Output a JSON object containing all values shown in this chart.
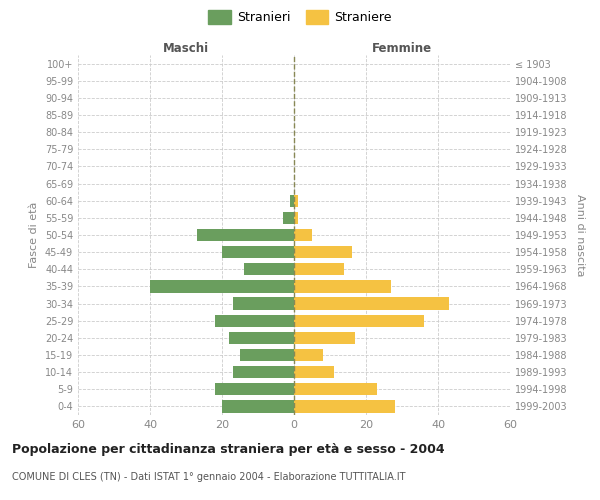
{
  "age_groups": [
    "0-4",
    "5-9",
    "10-14",
    "15-19",
    "20-24",
    "25-29",
    "30-34",
    "35-39",
    "40-44",
    "45-49",
    "50-54",
    "55-59",
    "60-64",
    "65-69",
    "70-74",
    "75-79",
    "80-84",
    "85-89",
    "90-94",
    "95-99",
    "100+"
  ],
  "birth_years": [
    "1999-2003",
    "1994-1998",
    "1989-1993",
    "1984-1988",
    "1979-1983",
    "1974-1978",
    "1969-1973",
    "1964-1968",
    "1959-1963",
    "1954-1958",
    "1949-1953",
    "1944-1948",
    "1939-1943",
    "1934-1938",
    "1929-1933",
    "1924-1928",
    "1919-1923",
    "1914-1918",
    "1909-1913",
    "1904-1908",
    "≤ 1903"
  ],
  "males": [
    20,
    22,
    17,
    15,
    18,
    22,
    17,
    40,
    14,
    20,
    27,
    3,
    1,
    0,
    0,
    0,
    0,
    0,
    0,
    0,
    0
  ],
  "females": [
    28,
    23,
    11,
    8,
    17,
    36,
    43,
    27,
    14,
    16,
    5,
    1,
    1,
    0,
    0,
    0,
    0,
    0,
    0,
    0,
    0
  ],
  "male_color": "#6a9e5e",
  "female_color": "#f5c242",
  "title": "Popolazione per cittadinanza straniera per età e sesso - 2004",
  "subtitle": "COMUNE DI CLES (TN) - Dati ISTAT 1° gennaio 2004 - Elaborazione TUTTITALIA.IT",
  "label_maschi": "Maschi",
  "label_femmine": "Femmine",
  "ylabel_left": "Fasce di età",
  "ylabel_right": "Anni di nascita",
  "legend_stranieri": "Stranieri",
  "legend_straniere": "Straniere",
  "xlim": 60,
  "grid_color": "#cccccc",
  "tick_color": "#888888"
}
